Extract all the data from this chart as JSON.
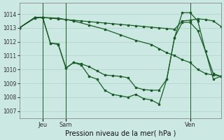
{
  "bg_color": "#cce8e2",
  "grid_color": "#b8d8d0",
  "line_color": "#1a5c28",
  "xlabel": "Pression niveau de la mer( hPa )",
  "ylim": [
    1006.5,
    1014.8
  ],
  "yticks": [
    1007,
    1008,
    1009,
    1010,
    1011,
    1012,
    1013,
    1014
  ],
  "xlim": [
    0,
    26
  ],
  "vline_positions": [
    3,
    6,
    22
  ],
  "xtick_pos": [
    3,
    6,
    22
  ],
  "xtick_lab": [
    "Jeu",
    "Sam",
    "Ven"
  ],
  "s1_x": [
    0,
    2,
    3,
    4,
    5,
    6,
    7,
    8,
    9,
    10,
    11,
    12,
    13,
    14,
    15,
    16,
    17,
    18,
    19,
    20,
    21,
    22,
    23,
    24,
    25,
    26
  ],
  "s1_y": [
    1013.0,
    1013.7,
    1013.75,
    1013.7,
    1013.65,
    1013.6,
    1013.55,
    1013.5,
    1013.45,
    1013.4,
    1013.35,
    1013.3,
    1013.25,
    1013.2,
    1013.15,
    1013.1,
    1013.05,
    1013.0,
    1012.95,
    1012.9,
    1013.5,
    1013.55,
    1013.65,
    1013.6,
    1013.5,
    1013.1
  ],
  "s2_x": [
    0,
    2,
    3,
    5,
    7,
    9,
    11,
    13,
    15,
    17,
    18,
    19,
    20,
    21,
    22,
    23,
    24,
    25,
    26
  ],
  "s2_y": [
    1013.0,
    1013.75,
    1013.75,
    1013.7,
    1013.5,
    1013.2,
    1012.9,
    1012.5,
    1012.1,
    1011.8,
    1011.5,
    1011.2,
    1011.0,
    1010.7,
    1010.5,
    1010.0,
    1009.7,
    1009.6,
    1009.5
  ],
  "s3_x": [
    0,
    2,
    3,
    4,
    5,
    6,
    7,
    8,
    9,
    10,
    11,
    12,
    13,
    14,
    15,
    16,
    17,
    18,
    19,
    20,
    21,
    22,
    23,
    24,
    25,
    26
  ],
  "s3_y": [
    1013.0,
    1013.75,
    1013.75,
    1011.9,
    1011.8,
    1010.1,
    1010.5,
    1010.4,
    1010.2,
    1009.9,
    1009.6,
    1009.55,
    1009.5,
    1009.4,
    1008.7,
    1008.55,
    1008.5,
    1008.5,
    1009.3,
    1012.3,
    1014.1,
    1014.1,
    1013.5,
    1011.3,
    1009.7,
    1009.5
  ],
  "s4_x": [
    0,
    2,
    3,
    4,
    5,
    6,
    7,
    8,
    9,
    10,
    11,
    12,
    13,
    14,
    15,
    16,
    17,
    18,
    19,
    20,
    21,
    22,
    23,
    24,
    25,
    26
  ],
  "s4_y": [
    1013.0,
    1013.75,
    1013.75,
    1011.9,
    1011.85,
    1010.1,
    1010.5,
    1010.3,
    1009.5,
    1009.3,
    1008.5,
    1008.2,
    1008.1,
    1008.0,
    1008.2,
    1007.9,
    1007.8,
    1007.5,
    1009.3,
    1012.3,
    1013.4,
    1013.4,
    1012.8,
    1011.3,
    1009.3,
    1009.5
  ]
}
